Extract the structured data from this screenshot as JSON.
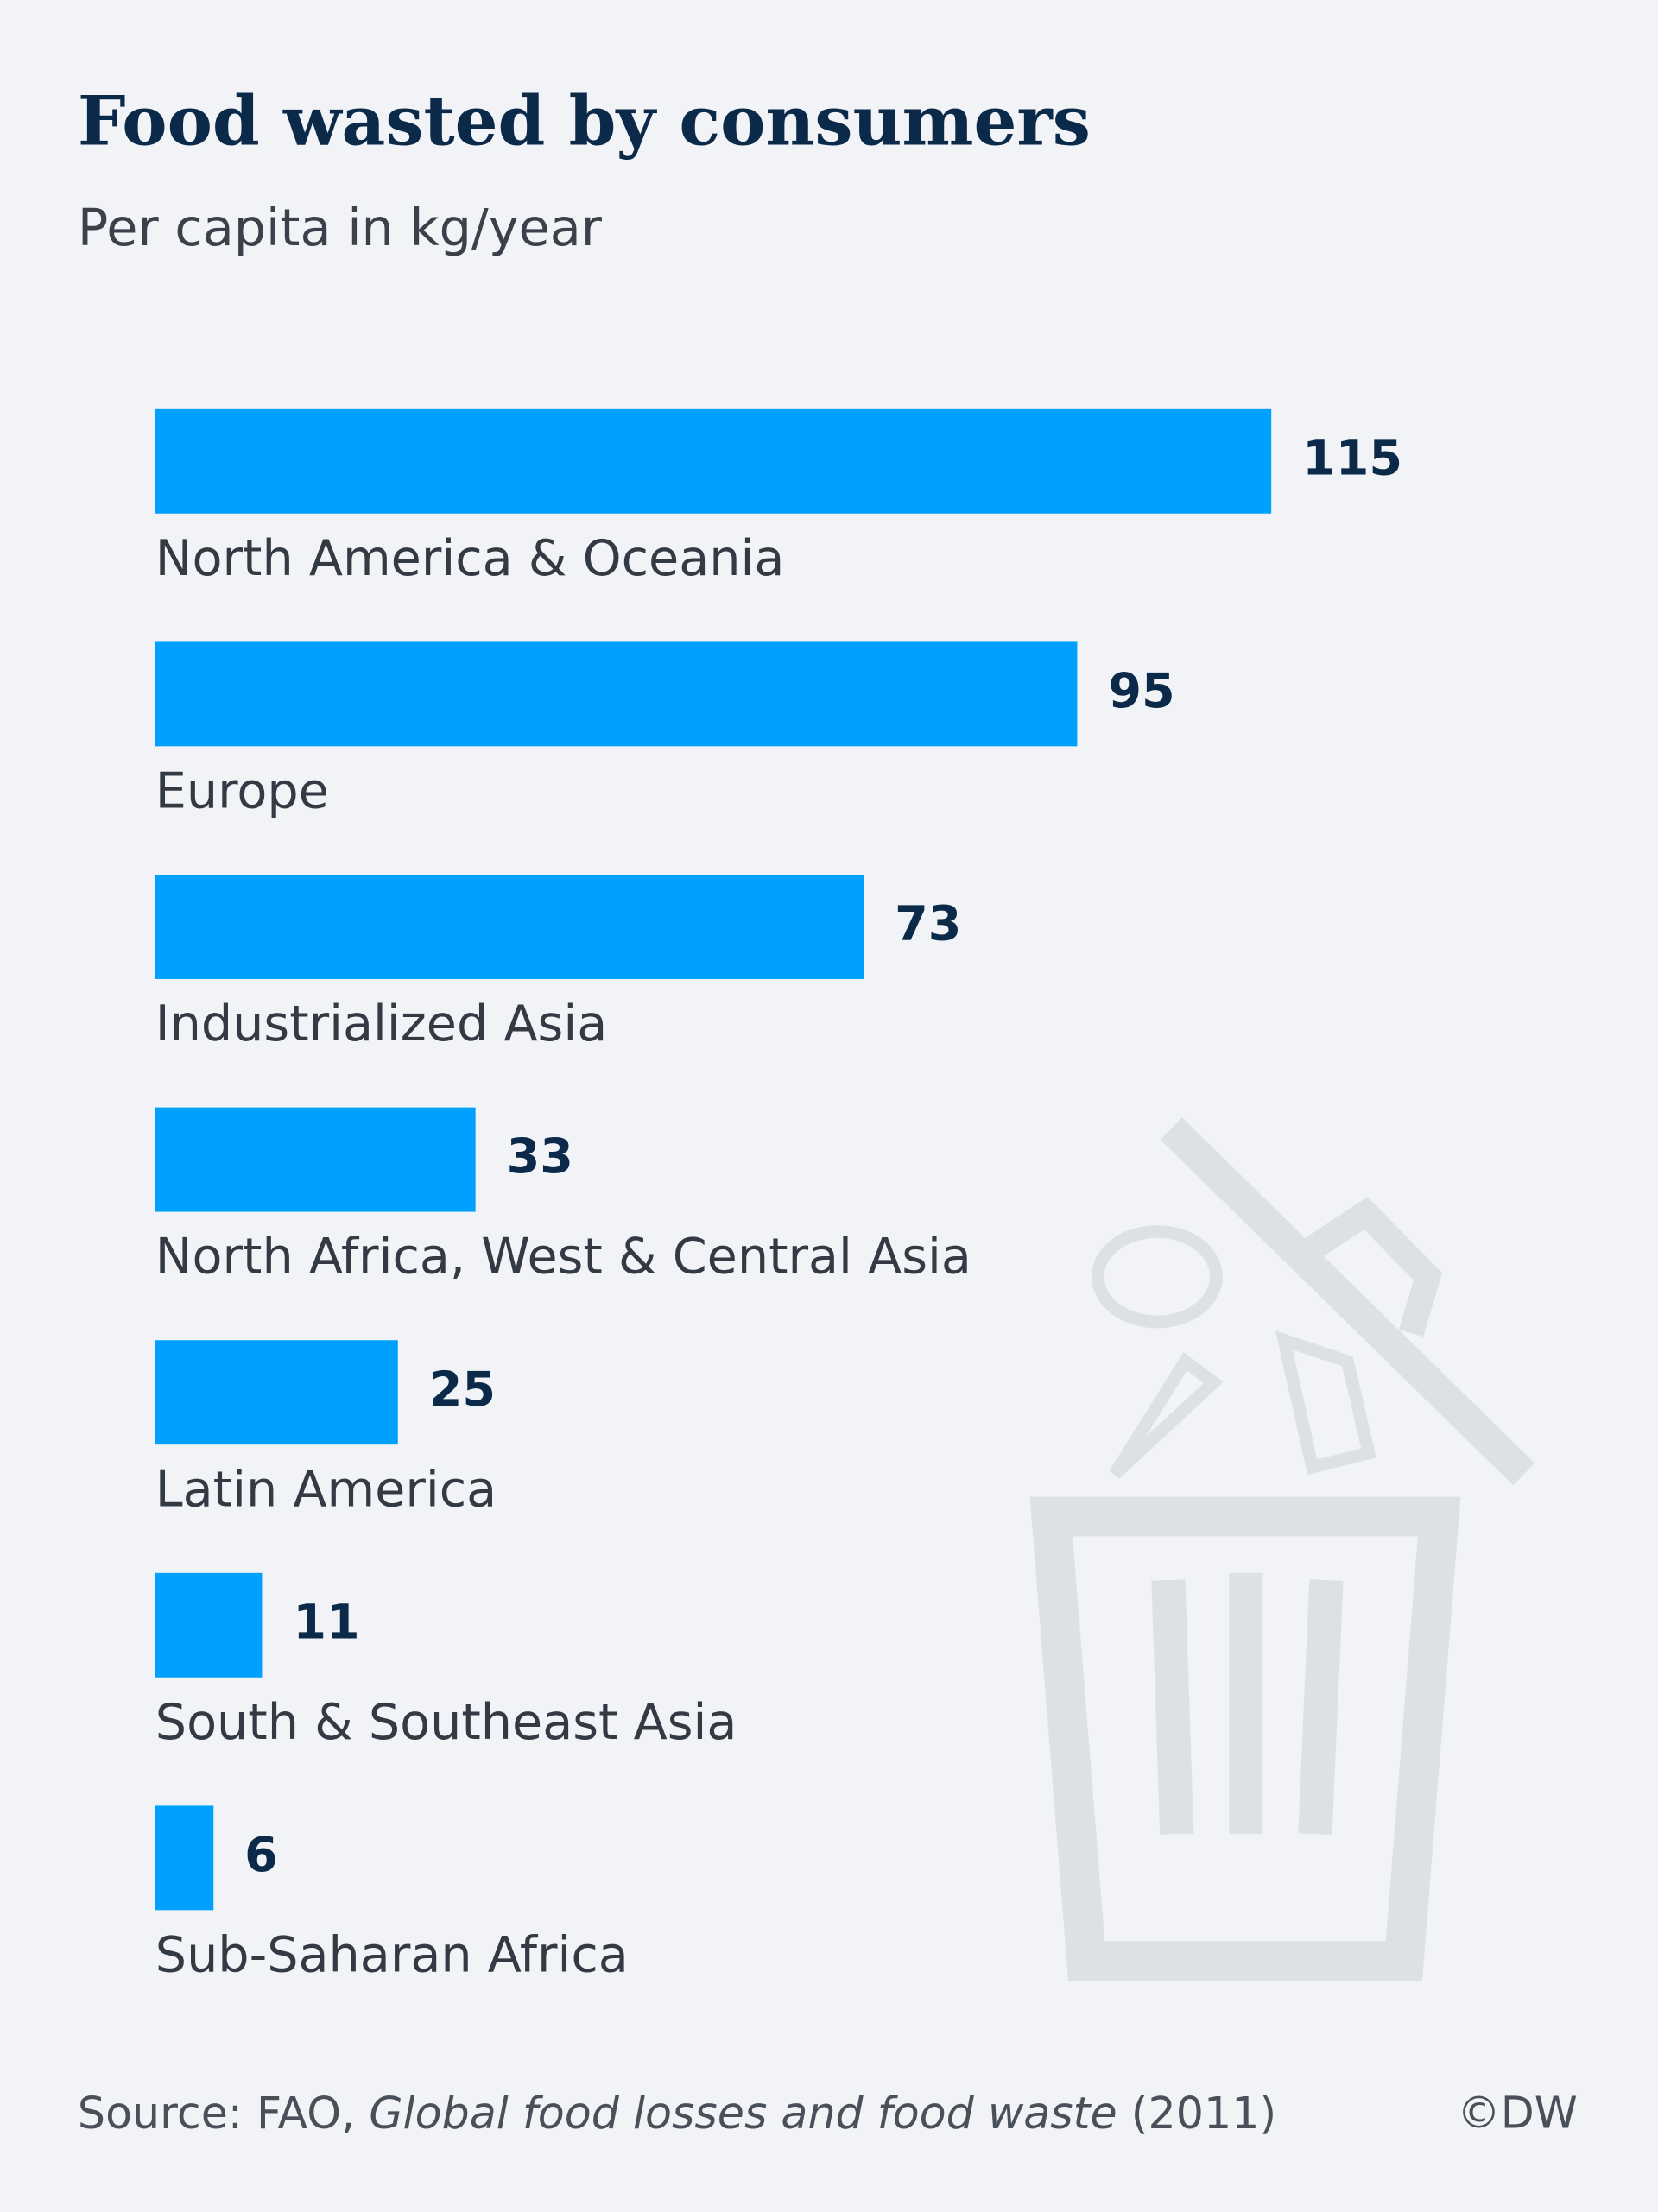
{
  "chart_data": {
    "type": "bar",
    "orientation": "horizontal",
    "title": "Food wasted by consumers",
    "subtitle": "Per capita in kg/year",
    "categories": [
      "North America & Oceania",
      "Europe",
      "Industrialized Asia",
      "North Africa, West & Central Asia",
      "Latin America",
      "South & Southeast Asia",
      "Sub-Saharan Africa"
    ],
    "values": [
      115,
      95,
      73,
      33,
      25,
      11,
      6
    ],
    "color": "#00a0ff",
    "source": [
      "Source: FAO, ",
      "Global food losses and food waste",
      " (2011)"
    ],
    "credit": "©DW"
  }
}
